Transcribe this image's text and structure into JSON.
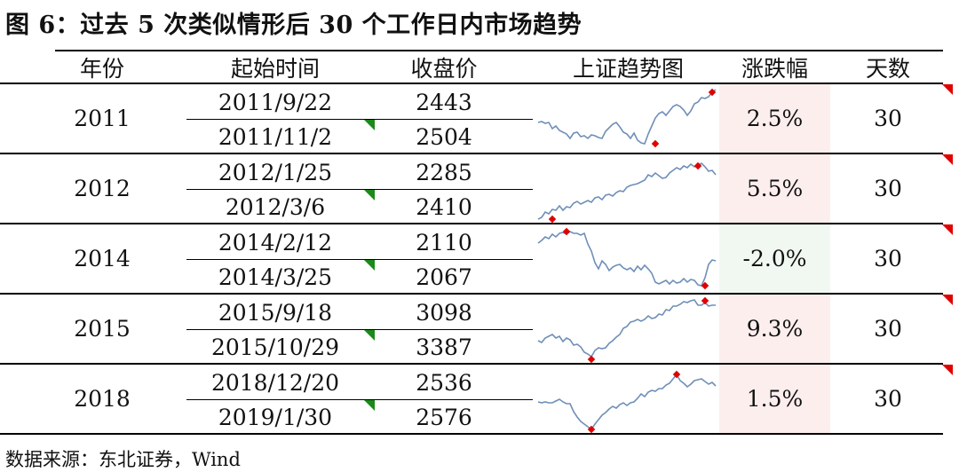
{
  "title": "图 6：过去 5 次类似情形后 30 个工作日内市场趋势",
  "source": "数据来源：东北证券，Wind",
  "headers": {
    "year": "年份",
    "start_time": "起始时间",
    "close": "收盘价",
    "trend": "上证趋势图",
    "change": "涨跌幅",
    "days": "天数"
  },
  "rows": [
    {
      "year": "2011",
      "date1": "2011/9/22",
      "date2": "2011/11/2",
      "close1": "2443",
      "close2": "2504",
      "change": "2.5%",
      "days": "30",
      "trend_color": "up"
    },
    {
      "year": "2012",
      "date1": "2012/1/25",
      "date2": "2012/3/6",
      "close1": "2285",
      "close2": "2410",
      "change": "5.5%",
      "days": "30",
      "trend_color": "up"
    },
    {
      "year": "2014",
      "date1": "2014/2/12",
      "date2": "2014/3/25",
      "close1": "2110",
      "close2": "2067",
      "change": "-2.0%",
      "days": "30",
      "trend_color": "down"
    },
    {
      "year": "2015",
      "date1": "2015/9/18",
      "date2": "2015/10/29",
      "close1": "3098",
      "close2": "3387",
      "change": "9.3%",
      "days": "30",
      "trend_color": "up"
    },
    {
      "year": "2018",
      "date1": "2018/12/20",
      "date2": "2019/1/30",
      "close1": "2536",
      "close2": "2576",
      "change": "1.5%",
      "days": "30",
      "trend_color": "up"
    }
  ],
  "colors": {
    "sparkline": "#6f8fb8",
    "marker": "#e00000",
    "band_up": "#fdeeee",
    "band_down": "#f1f8f1",
    "flag_green": "#1a8a1a",
    "flag_red": "#e00000"
  },
  "sparklines": [
    [
      0,
      38,
      3,
      37,
      6,
      39,
      9,
      38,
      12,
      45,
      15,
      42,
      18,
      47,
      21,
      49,
      24,
      51,
      27,
      56,
      30,
      50,
      33,
      49,
      36,
      54,
      39,
      53,
      42,
      56,
      45,
      52,
      48,
      53,
      51,
      55,
      54,
      56,
      57,
      48,
      60,
      44,
      63,
      40,
      66,
      38,
      69,
      43,
      72,
      49,
      75,
      51,
      78,
      56,
      81,
      50,
      84,
      58,
      87,
      61,
      90,
      62,
      93,
      51,
      96,
      42,
      99,
      33,
      102,
      28,
      105,
      26,
      108,
      30,
      111,
      25,
      114,
      20,
      117,
      18,
      120,
      20,
      123,
      24,
      126,
      30,
      129,
      25,
      132,
      17,
      135,
      15,
      138,
      10,
      141,
      11,
      144,
      9,
      147,
      4,
      150,
      1
    ],
    [
      0,
      68,
      3,
      66,
      6,
      60,
      9,
      62,
      12,
      57,
      15,
      58,
      18,
      53,
      21,
      58,
      24,
      54,
      27,
      55,
      30,
      50,
      33,
      48,
      36,
      51,
      39,
      49,
      42,
      47,
      45,
      49,
      48,
      44,
      51,
      43,
      54,
      46,
      57,
      41,
      60,
      40,
      63,
      42,
      66,
      38,
      69,
      36,
      72,
      37,
      75,
      32,
      78,
      30,
      81,
      29,
      84,
      28,
      87,
      26,
      90,
      24,
      93,
      18,
      96,
      20,
      99,
      16,
      102,
      19,
      105,
      22,
      108,
      21,
      111,
      16,
      114,
      13,
      117,
      10,
      120,
      12,
      123,
      8,
      126,
      10,
      129,
      6,
      132,
      9,
      135,
      8,
      138,
      5,
      141,
      9,
      144,
      14,
      147,
      13,
      150,
      18
    ],
    [
      0,
      16,
      3,
      13,
      6,
      9,
      9,
      11,
      12,
      6,
      15,
      9,
      18,
      5,
      21,
      4,
      24,
      6,
      27,
      3,
      30,
      5,
      33,
      5,
      36,
      7,
      39,
      5,
      42,
      17,
      45,
      25,
      48,
      38,
      51,
      45,
      54,
      36,
      57,
      40,
      60,
      47,
      63,
      43,
      66,
      41,
      69,
      40,
      72,
      44,
      75,
      46,
      78,
      44,
      81,
      48,
      84,
      42,
      87,
      46,
      90,
      41,
      93,
      45,
      96,
      50,
      99,
      60,
      102,
      62,
      105,
      60,
      108,
      58,
      111,
      62,
      114,
      58,
      117,
      61,
      120,
      60,
      123,
      56,
      126,
      60,
      129,
      57,
      132,
      58,
      135,
      63,
      138,
      64,
      141,
      55,
      144,
      40,
      147,
      35,
      150,
      36
    ],
    [
      0,
      47,
      3,
      49,
      6,
      44,
      9,
      42,
      12,
      40,
      15,
      44,
      18,
      42,
      21,
      48,
      24,
      44,
      27,
      46,
      30,
      52,
      33,
      51,
      36,
      54,
      39,
      60,
      42,
      62,
      45,
      65,
      48,
      58,
      51,
      55,
      54,
      56,
      57,
      55,
      60,
      50,
      63,
      47,
      66,
      43,
      69,
      40,
      72,
      33,
      75,
      31,
      78,
      26,
      81,
      25,
      84,
      23,
      87,
      25,
      90,
      23,
      93,
      19,
      96,
      22,
      99,
      21,
      102,
      17,
      105,
      18,
      108,
      12,
      111,
      13,
      114,
      8,
      117,
      8,
      120,
      6,
      123,
      3,
      126,
      4,
      129,
      2,
      132,
      1,
      135,
      7,
      138,
      7,
      141,
      4,
      144,
      8,
      147,
      7,
      150,
      7
    ],
    [
      0,
      37,
      3,
      38,
      6,
      37,
      9,
      38,
      12,
      38,
      15,
      36,
      18,
      34,
      21,
      37,
      24,
      39,
      27,
      39,
      30,
      48,
      33,
      54,
      36,
      59,
      39,
      62,
      42,
      65,
      45,
      68,
      48,
      62,
      51,
      57,
      54,
      52,
      57,
      49,
      60,
      45,
      63,
      42,
      66,
      44,
      69,
      40,
      72,
      38,
      75,
      41,
      78,
      38,
      81,
      37,
      84,
      33,
      87,
      28,
      90,
      31,
      93,
      26,
      96,
      24,
      99,
      25,
      102,
      22,
      105,
      22,
      108,
      18,
      111,
      16,
      114,
      11,
      117,
      6,
      120,
      13,
      123,
      16,
      126,
      20,
      129,
      17,
      132,
      13,
      135,
      12,
      138,
      11,
      141,
      14,
      144,
      17,
      147,
      15,
      150,
      19
    ]
  ],
  "marker_points": [
    [
      [
        147,
        4
      ],
      [
        99,
        62
      ]
    ],
    [
      [
        12,
        68
      ],
      [
        135,
        8
      ]
    ],
    [
      [
        24,
        3
      ],
      [
        141,
        64
      ]
    ],
    [
      [
        45,
        68
      ],
      [
        141,
        2
      ]
    ],
    [
      [
        117,
        6
      ],
      [
        45,
        68
      ]
    ]
  ]
}
